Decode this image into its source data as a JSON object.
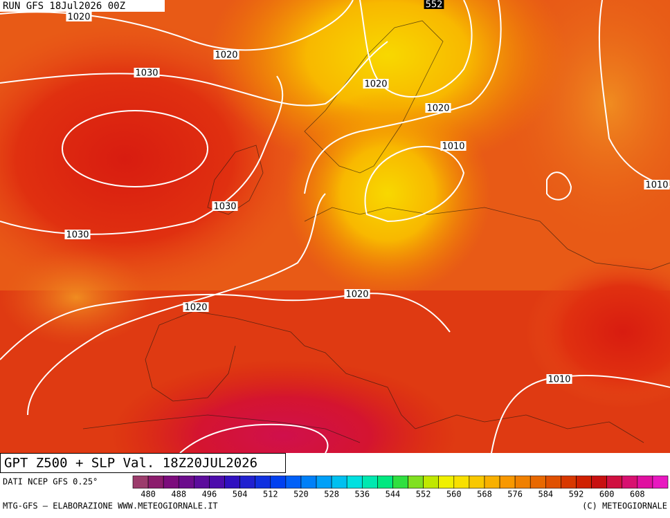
{
  "header": {
    "run": "RUN GFS 18Jul2026 00Z"
  },
  "map": {
    "isobar_labels": [
      "552",
      "1020",
      "1020",
      "1030",
      "1020",
      "1020",
      "1010",
      "1010",
      "1030",
      "1030",
      "1020",
      "1020",
      "1010"
    ]
  },
  "title": "GPT Z500 + SLP Val. 18Z20JUL2026",
  "legend": {
    "source": "DATI NCEP GFS 0.25°",
    "colors": [
      "#9c3c6c",
      "#8c1c6c",
      "#7c0c7c",
      "#6c0c8c",
      "#5c0c9c",
      "#4c0cac",
      "#3010c0",
      "#2020d0",
      "#1030e0",
      "#0040f0",
      "#0060f8",
      "#0080f8",
      "#00a0f8",
      "#00c0f0",
      "#00e0e0",
      "#00e8b0",
      "#00e880",
      "#30e040",
      "#80e020",
      "#c0e800",
      "#f0f000",
      "#f8e000",
      "#f8c800",
      "#f8b000",
      "#f89800",
      "#f08000",
      "#e86800",
      "#e05000",
      "#d83800",
      "#d02000",
      "#c81010",
      "#d01040",
      "#d81070",
      "#e010a0",
      "#e818c0"
    ],
    "labels": [
      480,
      488,
      496,
      504,
      512,
      520,
      528,
      536,
      544,
      552,
      560,
      568,
      576,
      584,
      592,
      600,
      608
    ]
  },
  "footer": {
    "left": "MTG-GFS — ELABORAZIONE WWW.METEOGIORNALE.IT",
    "right": "(C) METEOGIORNALE"
  }
}
